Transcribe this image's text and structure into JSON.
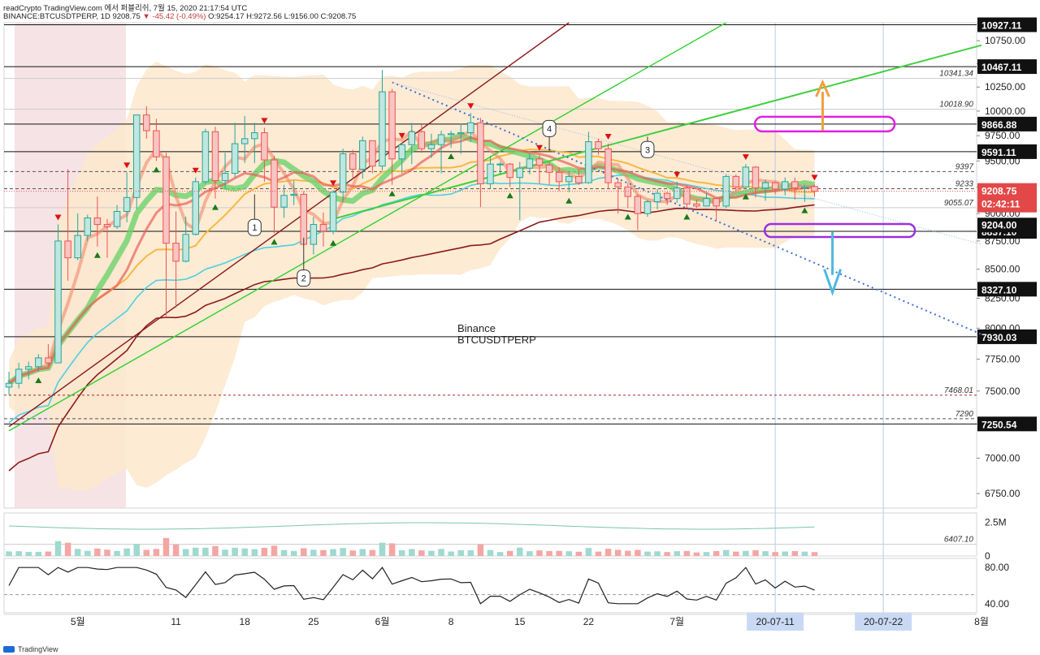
{
  "header": {
    "line1": "readCrypto TradingView.com 에서 퍼블리쉬, 7월 15, 2020 21:17:54 UTC",
    "symbol": "BINANCE:BTCUSDTPERP, 1D 9208.75",
    "change": "▼ -45.42 (-0.49%)",
    "ohlc": "O:9254.17 H:9272.56 L:9156.00 C:9208.75"
  },
  "footer": {
    "brand": "TradingView"
  },
  "colors": {
    "up": "#26a69a",
    "down": "#ef5350",
    "lime": "#2ed22e",
    "darkred": "#8b1a1a",
    "yellow": "#f5b942",
    "cyan": "#4fd0e0",
    "magenta": "#e020e0",
    "purple": "#9b30e0",
    "blue": "#3f6fd6",
    "band": "#fde7cc"
  },
  "chart_data": {
    "type": "candlestick",
    "title": "Binance BTCUSDTPERP",
    "watermark": [
      "Binance",
      "BTCUSDTPERP"
    ],
    "x_start": "2020-04-24",
    "x_end": "2020-08-01",
    "x_ticks": [
      {
        "date": "2020-05-01",
        "label": "5월"
      },
      {
        "date": "2020-05-11",
        "label": "11"
      },
      {
        "date": "2020-05-18",
        "label": "18"
      },
      {
        "date": "2020-05-25",
        "label": "25"
      },
      {
        "date": "2020-06-01",
        "label": "6월"
      },
      {
        "date": "2020-06-08",
        "label": "8"
      },
      {
        "date": "2020-06-15",
        "label": "15"
      },
      {
        "date": "2020-06-22",
        "label": "22"
      },
      {
        "date": "2020-07-01",
        "label": "7월"
      },
      {
        "date": "2020-08-01",
        "label": "8월"
      }
    ],
    "x_highlights": [
      {
        "date": "2020-07-11",
        "label": "20-07-11"
      },
      {
        "date": "2020-07-22",
        "label": "20-07-22"
      }
    ],
    "price_axis": {
      "min": 6650,
      "max": 10950,
      "log": true,
      "ticks": [
        6750,
        7000,
        7250,
        7500,
        7750,
        8000,
        8250,
        8500,
        8750,
        9000,
        9250,
        9500,
        9750,
        10000,
        10250,
        10500,
        10750
      ],
      "tick_labels": [
        "6750.00",
        "7000.00",
        "7250.00",
        "7500.00",
        "7750.00",
        "8000.00",
        "8250.00",
        "8500.00",
        "8750.00",
        "9000.00",
        "9250.00",
        "9500.00",
        "9750.00",
        "10000.00",
        "10250.00",
        "10500.00",
        "10750.00"
      ]
    },
    "horizontal_levels": [
      {
        "value": 10927.11,
        "label": "10927.11",
        "style": "solid-boxed"
      },
      {
        "value": 10467.11,
        "label": "10467.11",
        "style": "solid-boxed"
      },
      {
        "value": 10341.34,
        "label": "10341.34",
        "style": "plain"
      },
      {
        "value": 10018.9,
        "label": "10018.90",
        "style": "plain"
      },
      {
        "value": 9866.88,
        "label": "9866.88",
        "style": "solid-boxed"
      },
      {
        "value": 9591.11,
        "label": "9591.11",
        "style": "solid-boxed"
      },
      {
        "value": 9397,
        "label": "9397",
        "style": "dashed"
      },
      {
        "value": 9233,
        "label": "9233",
        "style": "dashed"
      },
      {
        "value": 9055.07,
        "label": "9055.07",
        "style": "plain"
      },
      {
        "value": 8837.1,
        "label": "8837.10",
        "style": "solid-boxed"
      },
      {
        "value": 8327.1,
        "label": "8327.10",
        "style": "solid-boxed"
      },
      {
        "value": 7930.03,
        "label": "7930.03",
        "style": "solid-boxed"
      },
      {
        "value": 7290,
        "label": "7290",
        "style": "dashed"
      },
      {
        "value": 7468.01,
        "label": "7468.01",
        "style": "dashed-red"
      },
      {
        "value": 7250.54,
        "label": "7250.54",
        "style": "solid-boxed"
      },
      {
        "value": 6407.1,
        "label": "6407.10",
        "style": "plain"
      }
    ],
    "price_marker": {
      "value": 9208.75,
      "label": "9208.75",
      "countdown": "02:42:11"
    },
    "level_marker": {
      "value": 9204.0,
      "label": "9204.00"
    },
    "candles": [
      [
        "2020-04-24",
        7530,
        7650,
        7470,
        7560
      ],
      [
        "2020-04-25",
        7560,
        7720,
        7520,
        7670
      ],
      [
        "2020-04-26",
        7670,
        7730,
        7590,
        7690
      ],
      [
        "2020-04-27",
        7690,
        7790,
        7650,
        7760
      ],
      [
        "2020-04-28",
        7760,
        7870,
        7700,
        7720
      ],
      [
        "2020-04-29",
        7720,
        8900,
        7720,
        8750
      ],
      [
        "2020-04-30",
        8750,
        9420,
        8400,
        8600
      ],
      [
        "2020-05-01",
        8600,
        9000,
        8580,
        8800
      ],
      [
        "2020-05-02",
        8800,
        8990,
        8750,
        8960
      ],
      [
        "2020-05-03",
        8960,
        9160,
        8700,
        8900
      ],
      [
        "2020-05-04",
        8900,
        8950,
        8600,
        8880
      ],
      [
        "2020-05-05",
        8880,
        9080,
        8860,
        9020
      ],
      [
        "2020-05-06",
        9020,
        9390,
        8920,
        9150
      ],
      [
        "2020-05-07",
        9150,
        9950,
        9040,
        9960
      ],
      [
        "2020-05-08",
        9960,
        10050,
        9720,
        9800
      ],
      [
        "2020-05-09",
        9800,
        9920,
        9500,
        9540
      ],
      [
        "2020-05-10",
        9540,
        9580,
        8100,
        8730
      ],
      [
        "2020-05-11",
        8730,
        9020,
        8170,
        8570
      ],
      [
        "2020-05-12",
        8570,
        8970,
        8560,
        8810
      ],
      [
        "2020-05-13",
        8810,
        9340,
        8800,
        9300
      ],
      [
        "2020-05-14",
        9300,
        9820,
        9280,
        9790
      ],
      [
        "2020-05-15",
        9790,
        9840,
        9140,
        9310
      ],
      [
        "2020-05-16",
        9310,
        9580,
        9230,
        9380
      ],
      [
        "2020-05-17",
        9380,
        9880,
        9340,
        9670
      ],
      [
        "2020-05-18",
        9670,
        9950,
        9480,
        9720
      ],
      [
        "2020-05-19",
        9720,
        9880,
        9480,
        9780
      ],
      [
        "2020-05-20",
        9780,
        9830,
        9300,
        9510
      ],
      [
        "2020-05-21",
        9510,
        9550,
        8820,
        9060
      ],
      [
        "2020-05-22",
        9060,
        9270,
        8960,
        9170
      ],
      [
        "2020-05-23",
        9170,
        9310,
        9080,
        9180
      ],
      [
        "2020-05-24",
        9180,
        9210,
        8720,
        8720
      ],
      [
        "2020-05-25",
        8720,
        8970,
        8630,
        8900
      ],
      [
        "2020-05-26",
        8900,
        9010,
        8700,
        8840
      ],
      [
        "2020-05-27",
        8840,
        9220,
        8810,
        9200
      ],
      [
        "2020-05-28",
        9200,
        9620,
        9110,
        9570
      ],
      [
        "2020-05-29",
        9570,
        9610,
        9340,
        9420
      ],
      [
        "2020-05-30",
        9420,
        9740,
        9330,
        9700
      ],
      [
        "2020-05-31",
        9700,
        9700,
        9380,
        9450
      ],
      [
        "2020-06-01",
        9450,
        10430,
        9410,
        10200
      ],
      [
        "2020-06-02",
        10200,
        10230,
        9270,
        9520
      ],
      [
        "2020-06-03",
        9520,
        9680,
        9380,
        9660
      ],
      [
        "2020-06-04",
        9660,
        9880,
        9470,
        9790
      ],
      [
        "2020-06-05",
        9790,
        9860,
        9580,
        9620
      ],
      [
        "2020-06-06",
        9620,
        9770,
        9530,
        9660
      ],
      [
        "2020-06-07",
        9660,
        9800,
        9380,
        9760
      ],
      [
        "2020-06-08",
        9760,
        9800,
        9630,
        9770
      ],
      [
        "2020-06-09",
        9770,
        9870,
        9570,
        9780
      ],
      [
        "2020-06-10",
        9780,
        9980,
        9690,
        9880
      ],
      [
        "2020-06-11",
        9880,
        9930,
        9060,
        9280
      ],
      [
        "2020-06-12",
        9280,
        9550,
        9230,
        9470
      ],
      [
        "2020-06-13",
        9470,
        9490,
        9370,
        9470
      ],
      [
        "2020-06-14",
        9470,
        9480,
        9250,
        9340
      ],
      [
        "2020-06-15",
        9340,
        9490,
        8940,
        9430
      ],
      [
        "2020-06-16",
        9430,
        9570,
        9370,
        9520
      ],
      [
        "2020-06-17",
        9520,
        9560,
        9280,
        9460
      ],
      [
        "2020-06-18",
        9460,
        9490,
        9270,
        9390
      ],
      [
        "2020-06-19",
        9390,
        9440,
        9210,
        9300
      ],
      [
        "2020-06-20",
        9300,
        9400,
        9200,
        9350
      ],
      [
        "2020-06-21",
        9350,
        9420,
        9270,
        9290
      ],
      [
        "2020-06-22",
        9290,
        9790,
        9280,
        9690
      ],
      [
        "2020-06-23",
        9690,
        9720,
        9560,
        9620
      ],
      [
        "2020-06-24",
        9620,
        9670,
        9230,
        9290
      ],
      [
        "2020-06-25",
        9290,
        9330,
        9000,
        9250
      ],
      [
        "2020-06-26",
        9250,
        9290,
        9050,
        9160
      ],
      [
        "2020-06-27",
        9160,
        9180,
        8850,
        9000
      ],
      [
        "2020-06-28",
        9000,
        9130,
        8970,
        9110
      ],
      [
        "2020-06-29",
        9110,
        9230,
        9040,
        9190
      ],
      [
        "2020-06-30",
        9190,
        9200,
        9080,
        9140
      ],
      [
        "2020-07-01",
        9140,
        9300,
        9100,
        9240
      ],
      [
        "2020-07-02",
        9240,
        9270,
        9050,
        9090
      ],
      [
        "2020-07-03",
        9090,
        9130,
        9050,
        9070
      ],
      [
        "2020-07-04",
        9070,
        9190,
        9070,
        9140
      ],
      [
        "2020-07-05",
        9140,
        9150,
        8930,
        9070
      ],
      [
        "2020-07-06",
        9070,
        9370,
        9050,
        9350
      ],
      [
        "2020-07-07",
        9350,
        9370,
        9210,
        9250
      ],
      [
        "2020-07-08",
        9250,
        9470,
        9240,
        9440
      ],
      [
        "2020-07-09",
        9440,
        9450,
        9150,
        9240
      ],
      [
        "2020-07-10",
        9240,
        9320,
        9120,
        9290
      ],
      [
        "2020-07-11",
        9290,
        9300,
        9180,
        9230
      ],
      [
        "2020-07-12",
        9230,
        9340,
        9170,
        9300
      ],
      [
        "2020-07-13",
        9300,
        9340,
        9130,
        9240
      ],
      [
        "2020-07-14",
        9240,
        9270,
        9110,
        9250
      ],
      [
        "2020-07-15",
        9254.17,
        9272.56,
        9156.0,
        9208.75
      ]
    ],
    "volume_axis": {
      "ticks": [
        0,
        2500000
      ],
      "tick_labels": [
        "0",
        "2.5M"
      ]
    },
    "oscillator_axis": {
      "ticks": [
        40,
        80
      ],
      "tick_labels": [
        "40.00",
        "80.00"
      ]
    },
    "annotations": [
      "1",
      "2",
      "3",
      "4"
    ]
  }
}
